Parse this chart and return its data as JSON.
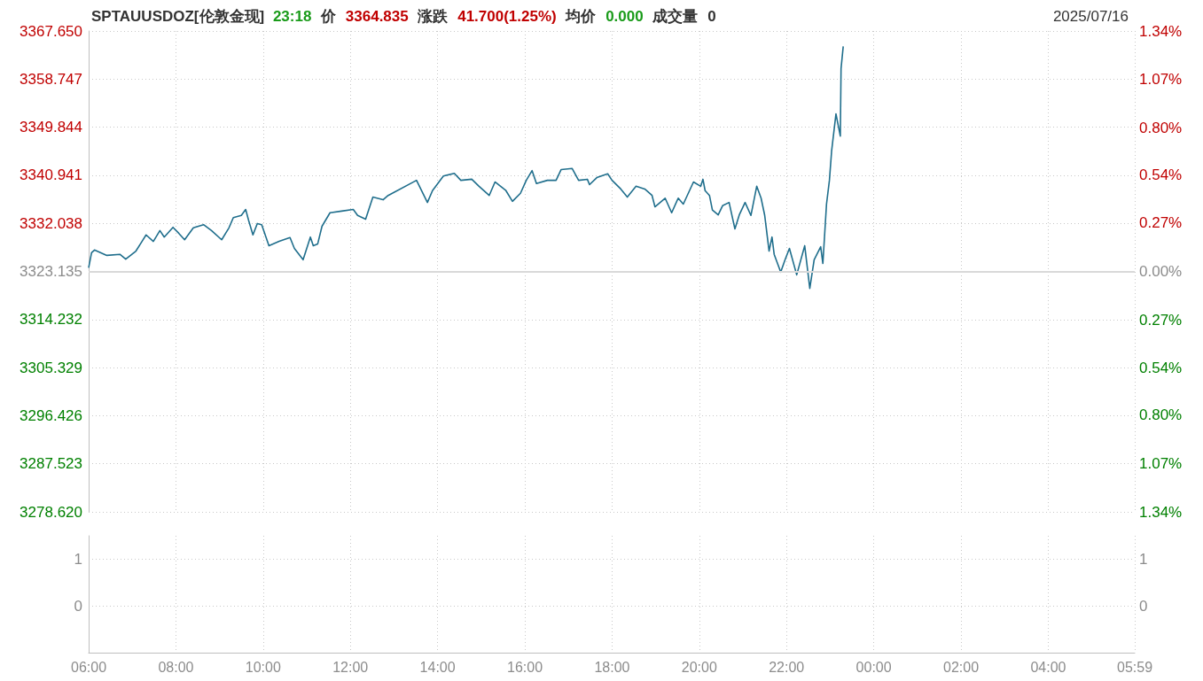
{
  "chart_data": [
    {
      "type": "line",
      "title": "SPTAUUSDOZ[伦敦金现]",
      "subtitle": "2025/07/16",
      "annotations": [
        "23:18",
        "价",
        "3364.835",
        "涨跌",
        "41.700(1.25%)",
        "均价",
        "0.000",
        "成交量",
        "0"
      ],
      "x": [
        "2025-07-16T06:00",
        "2025-07-16T06:04",
        "2025-07-16T06:08",
        "2025-07-16T06:25",
        "2025-07-16T06:43",
        "2025-07-16T06:51",
        "2025-07-16T07:05",
        "2025-07-16T07:13",
        "2025-07-16T07:19",
        "2025-07-16T07:29",
        "2025-07-16T07:38",
        "2025-07-16T07:44",
        "2025-07-16T07:56",
        "2025-07-16T08:04",
        "2025-07-16T08:12",
        "2025-07-16T08:24",
        "2025-07-16T08:38",
        "2025-07-16T08:49",
        "2025-07-16T09:03",
        "2025-07-16T09:13",
        "2025-07-16T09:19",
        "2025-07-16T09:30",
        "2025-07-16T09:36",
        "2025-07-16T09:40",
        "2025-07-16T09:46",
        "2025-07-16T09:52",
        "2025-07-16T09:58",
        "2025-07-16T10:08",
        "2025-07-16T10:22",
        "2025-07-16T10:37",
        "2025-07-16T10:43",
        "2025-07-16T10:55",
        "2025-07-16T11:05",
        "2025-07-16T11:09",
        "2025-07-16T11:15",
        "2025-07-16T11:21",
        "2025-07-16T11:32",
        "2025-07-16T11:48",
        "2025-07-16T12:04",
        "2025-07-16T12:10",
        "2025-07-16T12:21",
        "2025-07-16T12:31",
        "2025-07-16T12:45",
        "2025-07-16T12:52",
        "2025-07-16T13:31",
        "2025-07-16T13:46",
        "2025-07-16T13:53",
        "2025-07-16T14:08",
        "2025-07-16T14:23",
        "2025-07-16T14:32",
        "2025-07-16T14:47",
        "2025-07-16T14:57",
        "2025-07-16T15:11",
        "2025-07-16T15:19",
        "2025-07-16T15:34",
        "2025-07-16T15:43",
        "2025-07-16T15:54",
        "2025-07-16T16:02",
        "2025-07-16T16:10",
        "2025-07-16T16:16",
        "2025-07-16T16:31",
        "2025-07-16T16:43",
        "2025-07-16T16:50",
        "2025-07-16T17:05",
        "2025-07-16T17:14",
        "2025-07-16T17:26",
        "2025-07-16T17:29",
        "2025-07-16T17:39",
        "2025-07-16T17:54",
        "2025-07-16T18:00",
        "2025-07-16T18:12",
        "2025-07-16T18:21",
        "2025-07-16T18:33",
        "2025-07-16T18:45",
        "2025-07-16T18:55",
        "2025-07-16T18:59",
        "2025-07-16T19:13",
        "2025-07-16T19:22",
        "2025-07-16T19:31",
        "2025-07-16T19:38",
        "2025-07-16T19:52",
        "2025-07-16T20:02",
        "2025-07-16T20:05",
        "2025-07-16T20:08",
        "2025-07-16T20:14",
        "2025-07-16T20:18",
        "2025-07-16T20:26",
        "2025-07-16T20:32",
        "2025-07-16T20:41",
        "2025-07-16T20:49",
        "2025-07-16T20:55",
        "2025-07-16T21:03",
        "2025-07-16T21:11",
        "2025-07-16T21:19",
        "2025-07-16T21:25",
        "2025-07-16T21:30",
        "2025-07-16T21:36",
        "2025-07-16T21:40",
        "2025-07-16T21:43",
        "2025-07-16T21:52",
        "2025-07-16T21:58",
        "2025-07-16T22:04",
        "2025-07-16T22:14",
        "2025-07-16T22:25",
        "2025-07-16T22:32",
        "2025-07-16T22:38",
        "2025-07-16T22:47",
        "2025-07-16T22:50",
        "2025-07-16T22:55",
        "2025-07-16T22:59",
        "2025-07-16T23:02",
        "2025-07-16T23:08",
        "2025-07-16T23:14",
        "2025-07-16T23:15",
        "2025-07-16T23:18"
      ],
      "series": [
        {
          "color": "#1f6e8c",
          "values": [
            3323.8,
            3326.6,
            3327.1,
            3326.1,
            3326.3,
            3325.4,
            3326.9,
            3328.6,
            3329.9,
            3328.7,
            3330.7,
            3329.5,
            3331.3,
            3330.2,
            3329.0,
            3331.2,
            3331.8,
            3330.7,
            3329.0,
            3331.2,
            3333.1,
            3333.5,
            3334.6,
            3332.6,
            3329.9,
            3332.0,
            3331.8,
            3327.9,
            3328.7,
            3329.4,
            3327.4,
            3325.3,
            3329.5,
            3327.9,
            3328.2,
            3331.5,
            3334.0,
            3334.3,
            3334.6,
            3333.5,
            3332.8,
            3336.9,
            3336.4,
            3337.2,
            3340.0,
            3335.9,
            3338.1,
            3340.8,
            3341.3,
            3340.0,
            3340.2,
            3338.9,
            3337.2,
            3339.7,
            3338.1,
            3336.1,
            3337.6,
            3340.0,
            3341.8,
            3339.4,
            3340.0,
            3340.0,
            3342.0,
            3342.2,
            3340.0,
            3340.2,
            3339.2,
            3340.5,
            3341.2,
            3340.0,
            3338.4,
            3336.9,
            3338.9,
            3338.4,
            3337.2,
            3335.1,
            3336.7,
            3334.0,
            3336.7,
            3335.6,
            3339.7,
            3338.9,
            3340.2,
            3338.1,
            3337.2,
            3334.5,
            3333.6,
            3335.3,
            3335.9,
            3331.0,
            3333.6,
            3335.9,
            3333.5,
            3338.9,
            3336.7,
            3333.5,
            3326.9,
            3329.5,
            3326.3,
            3323.0,
            3325.3,
            3327.4,
            3322.5,
            3327.9,
            3320.0,
            3325.3,
            3327.7,
            3324.6,
            3335.6,
            3340.0,
            3345.4,
            3352.3,
            3348.2,
            3360.7,
            3364.8
          ]
        }
      ],
      "xlim": [
        "2025-07-16T06:00",
        "2025-07-17T05:59"
      ],
      "xticks": [
        {
          "value": "2025-07-16T06:00",
          "label": null
        },
        {
          "value": "2025-07-16T08:00",
          "label": null
        },
        {
          "value": "2025-07-16T10:00",
          "label": null
        },
        {
          "value": "2025-07-16T12:00",
          "label": null
        },
        {
          "value": "2025-07-16T14:00",
          "label": null
        },
        {
          "value": "2025-07-16T16:00",
          "label": null
        },
        {
          "value": "2025-07-16T18:00",
          "label": null
        },
        {
          "value": "2025-07-16T20:00",
          "label": null
        },
        {
          "value": "2025-07-16T22:00",
          "label": null
        },
        {
          "value": "2025-07-17T00:00",
          "label": null
        },
        {
          "value": "2025-07-17T02:00",
          "label": null
        },
        {
          "value": "2025-07-17T04:00",
          "label": null
        },
        {
          "value": "2025-07-17T05:59",
          "label": null
        }
      ],
      "ylim": [
        3278.62,
        3367.65
      ],
      "yticks": [
        {
          "value": 3278.62,
          "label": "3278.620"
        },
        {
          "value": 3287.523,
          "label": "3287.523"
        },
        {
          "value": 3296.426,
          "label": "3296.426"
        },
        {
          "value": 3305.329,
          "label": "3305.329"
        },
        {
          "value": 3314.232,
          "label": "3314.232"
        },
        {
          "value": 3323.135,
          "label": "3323.135"
        },
        {
          "value": 3332.038,
          "label": "3332.038"
        },
        {
          "value": 3340.941,
          "label": "3340.941"
        },
        {
          "value": 3349.844,
          "label": "3349.844"
        },
        {
          "value": 3358.747,
          "label": "3358.747"
        },
        {
          "value": 3367.65,
          "label": "3367.650"
        }
      ],
      "y2lim": [
        -1.34,
        1.34
      ],
      "y2ticks": [
        {
          "value": -1.34,
          "label": "1.34%"
        },
        {
          "value": -1.07,
          "label": "1.07%"
        },
        {
          "value": -0.8,
          "label": "0.80%"
        },
        {
          "value": -0.54,
          "label": "0.54%"
        },
        {
          "value": -0.27,
          "label": "0.27%"
        },
        {
          "value": 0,
          "label": "0.00%"
        },
        {
          "value": 0.27,
          "label": "0.27%"
        },
        {
          "value": 0.54,
          "label": "0.54%"
        },
        {
          "value": 0.8,
          "label": "0.80%"
        },
        {
          "value": 1.07,
          "label": "1.07%"
        },
        {
          "value": 1.34,
          "label": "1.34%"
        }
      ],
      "ref_lines": [
        {
          "axis": "y",
          "value": 3323.135,
          "color": "#d9d9d9"
        }
      ],
      "grid": true,
      "tick_labels": "y"
    },
    {
      "type": "bar",
      "xlim": [
        "2025-07-16T06:00",
        "2025-07-17T05:59"
      ],
      "xticks": [
        {
          "value": "2025-07-16T06:00",
          "label": "06:00"
        },
        {
          "value": "2025-07-16T08:00",
          "label": "08:00"
        },
        {
          "value": "2025-07-16T10:00",
          "label": "10:00"
        },
        {
          "value": "2025-07-16T12:00",
          "label": "12:00"
        },
        {
          "value": "2025-07-16T14:00",
          "label": "14:00"
        },
        {
          "value": "2025-07-16T16:00",
          "label": "16:00"
        },
        {
          "value": "2025-07-16T18:00",
          "label": "18:00"
        },
        {
          "value": "2025-07-16T20:00",
          "label": "20:00"
        },
        {
          "value": "2025-07-16T22:00",
          "label": "22:00"
        },
        {
          "value": "2025-07-17T00:00",
          "label": "00:00"
        },
        {
          "value": "2025-07-17T02:00",
          "label": "02:00"
        },
        {
          "value": "2025-07-17T04:00",
          "label": "04:00"
        },
        {
          "value": "2025-07-17T05:59",
          "label": "05:59"
        }
      ],
      "ylim": [
        -1,
        1.5
      ],
      "yticks": [
        0,
        1
      ],
      "y2lim": [
        -1,
        1.5
      ],
      "y2ticks": [
        0,
        1
      ],
      "grid": true
    }
  ]
}
